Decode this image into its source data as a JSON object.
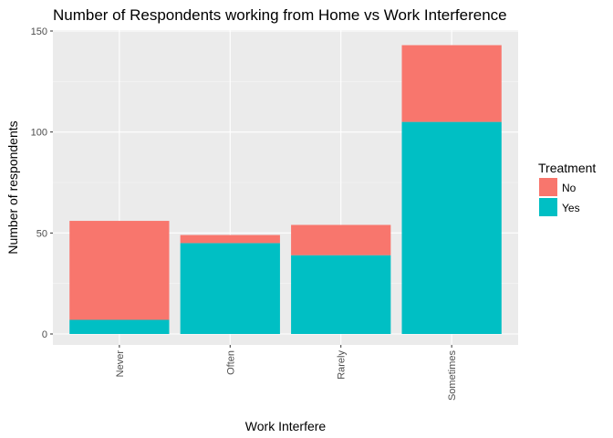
{
  "chart_data": {
    "type": "bar",
    "stacked": true,
    "title": "Number of Respondents working from Home vs Work Interference",
    "xlabel": "Work Interfere",
    "ylabel": "Number of respondents",
    "categories": [
      "Never",
      "Often",
      "Rarely",
      "Sometimes"
    ],
    "series": [
      {
        "name": "Yes",
        "values": [
          7,
          45,
          39,
          105
        ],
        "color": "#00bfc4"
      },
      {
        "name": "No",
        "values": [
          49,
          4,
          15,
          38
        ],
        "color": "#f8766d"
      }
    ],
    "ylim": [
      0,
      150
    ],
    "yticks": [
      "0",
      "50",
      "100",
      "150"
    ],
    "grid": true,
    "legend": {
      "title": "Treatment",
      "position": "right",
      "entries": [
        {
          "label": "No",
          "color": "#f8766d"
        },
        {
          "label": "Yes",
          "color": "#00bfc4"
        }
      ]
    }
  }
}
